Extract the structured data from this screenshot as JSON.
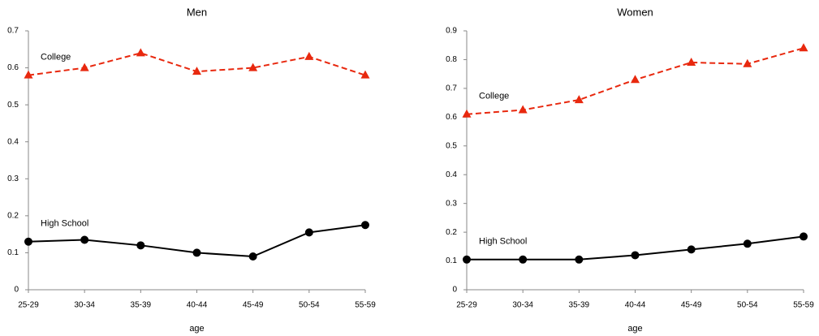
{
  "chart_data": [
    {
      "type": "line",
      "title": "Men",
      "x_label": "age",
      "categories": [
        "25-29",
        "30-34",
        "35-39",
        "40-44",
        "45-49",
        "50-54",
        "55-59"
      ],
      "series": [
        {
          "name": "College",
          "color": "#e8280e",
          "dashed": true,
          "marker": "triangle",
          "values": [
            0.58,
            0.6,
            0.64,
            0.59,
            0.6,
            0.63,
            0.58
          ]
        },
        {
          "name": "High School",
          "color": "#000000",
          "dashed": false,
          "marker": "circle",
          "values": [
            0.13,
            0.135,
            0.12,
            0.1,
            0.09,
            0.155,
            0.175
          ]
        }
      ],
      "ylim": [
        0,
        0.7
      ],
      "yticks": [
        0,
        0.1,
        0.2,
        0.3,
        0.4,
        0.5,
        0.6,
        0.7
      ],
      "grid": false
    },
    {
      "type": "line",
      "title": "Women",
      "x_label": "age",
      "categories": [
        "25-29",
        "30-34",
        "35-39",
        "40-44",
        "45-49",
        "50-54",
        "55-59"
      ],
      "series": [
        {
          "name": "College",
          "color": "#e8280e",
          "dashed": true,
          "marker": "triangle",
          "values": [
            0.61,
            0.625,
            0.66,
            0.73,
            0.79,
            0.785,
            0.84
          ]
        },
        {
          "name": "High School",
          "color": "#000000",
          "dashed": false,
          "marker": "circle",
          "values": [
            0.105,
            0.105,
            0.105,
            0.12,
            0.14,
            0.16,
            0.185
          ]
        }
      ],
      "ylim": [
        0,
        0.9
      ],
      "yticks": [
        0,
        0.1,
        0.2,
        0.3,
        0.4,
        0.5,
        0.6,
        0.7,
        0.8,
        0.9
      ],
      "grid": false
    }
  ]
}
